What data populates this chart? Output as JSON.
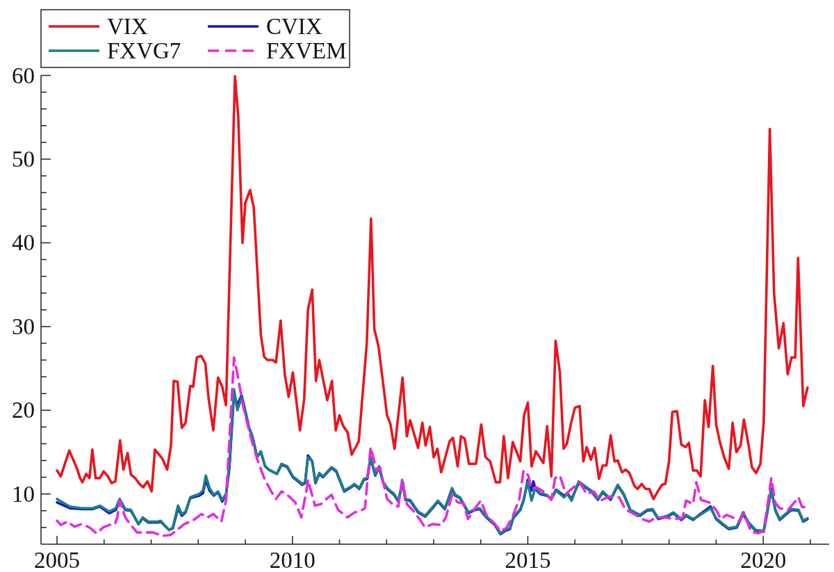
{
  "chart_data": {
    "type": "line",
    "legend": "top left",
    "line_style": "solid",
    "xlim": [
      2004.66,
      2021.4
    ],
    "xticks": [
      2005,
      {
        "value": 2006,
        "label": null
      },
      {
        "value": 2007,
        "label": null
      },
      {
        "value": 2008,
        "label": null
      },
      {
        "value": 2009,
        "label": null
      },
      2010,
      {
        "value": 2011,
        "label": null
      },
      {
        "value": 2012,
        "label": null
      },
      {
        "value": 2013,
        "label": null
      },
      {
        "value": 2014,
        "label": null
      },
      2015,
      {
        "value": 2016,
        "label": null
      },
      {
        "value": 2017,
        "label": null
      },
      {
        "value": 2018,
        "label": null
      },
      {
        "value": 2019,
        "label": null
      },
      2020,
      {
        "value": 2021,
        "label": null
      }
    ],
    "ylim": [
      4,
      60
    ],
    "yticks": [
      {
        "value": 6,
        "label": null
      },
      {
        "value": 8,
        "label": null
      },
      10,
      {
        "value": 12,
        "label": null
      },
      {
        "value": 14,
        "label": null
      },
      {
        "value": 16,
        "label": null
      },
      {
        "value": 18,
        "label": null
      },
      20,
      {
        "value": 22,
        "label": null
      },
      {
        "value": 24,
        "label": null
      },
      {
        "value": 26,
        "label": null
      },
      {
        "value": 28,
        "label": null
      },
      30,
      {
        "value": 32,
        "label": null
      },
      {
        "value": 34,
        "label": null
      },
      {
        "value": 36,
        "label": null
      },
      {
        "value": 38,
        "label": null
      },
      40,
      {
        "value": 42,
        "label": null
      },
      {
        "value": 44,
        "label": null
      },
      {
        "value": 46,
        "label": null
      },
      {
        "value": 48,
        "label": null
      },
      50,
      {
        "value": 52,
        "label": null
      },
      {
        "value": 54,
        "label": null
      },
      {
        "value": 56,
        "label": null
      },
      {
        "value": 58,
        "label": null
      },
      60
    ],
    "series": [
      {
        "name": "VIX",
        "color": "#e8161e",
        "x": [
          2005.0,
          2005.08,
          2005.26,
          2005.42,
          2005.49,
          2005.54,
          2005.62,
          2005.69,
          2005.75,
          2005.82,
          2005.91,
          2005.99,
          2006.07,
          2006.16,
          2006.24,
          2006.34,
          2006.41,
          2006.5,
          2006.57,
          2006.66,
          2006.75,
          2006.83,
          2006.92,
          2007.01,
          2007.08,
          2007.24,
          2007.34,
          2007.42,
          2007.48,
          2007.56,
          2007.65,
          2007.73,
          2007.83,
          2007.89,
          2007.97,
          2008.06,
          2008.15,
          2008.22,
          2008.32,
          2008.42,
          2008.51,
          2008.59,
          2008.78,
          2008.85,
          2008.94,
          2009.0,
          2009.1,
          2009.18,
          2009.33,
          2009.4,
          2009.47,
          2009.58,
          2009.65,
          2009.75,
          2009.84,
          2009.92,
          2010.01,
          2010.16,
          2010.25,
          2010.33,
          2010.42,
          2010.5,
          2010.57,
          2010.74,
          2010.84,
          2010.92,
          2011.0,
          2011.08,
          2011.17,
          2011.26,
          2011.41,
          2011.58,
          2011.67,
          2011.74,
          2011.83,
          2012.01,
          2012.08,
          2012.17,
          2012.34,
          2012.43,
          2012.5,
          2012.67,
          2012.76,
          2012.83,
          2012.92,
          2013.0,
          2013.08,
          2013.16,
          2013.34,
          2013.41,
          2013.51,
          2013.58,
          2013.66,
          2013.75,
          2013.9,
          2014.01,
          2014.1,
          2014.2,
          2014.32,
          2014.41,
          2014.49,
          2014.58,
          2014.68,
          2014.84,
          2014.92,
          2015.0,
          2015.08,
          2015.17,
          2015.33,
          2015.41,
          2015.5,
          2015.59,
          2015.68,
          2015.76,
          2015.83,
          2015.92,
          2016.0,
          2016.1,
          2016.18,
          2016.25,
          2016.34,
          2016.42,
          2016.51,
          2016.59,
          2016.67,
          2016.76,
          2016.84,
          2016.91,
          2017.0,
          2017.08,
          2017.16,
          2017.26,
          2017.33,
          2017.42,
          2017.5,
          2017.58,
          2017.67,
          2017.76,
          2017.85,
          2017.92,
          2018.0,
          2018.07,
          2018.17,
          2018.26,
          2018.35,
          2018.42,
          2018.51,
          2018.59,
          2018.67,
          2018.76,
          2018.84,
          2018.93,
          2019.0,
          2019.08,
          2019.17,
          2019.27,
          2019.35,
          2019.43,
          2019.52,
          2019.59,
          2019.69,
          2019.76,
          2019.85,
          2019.94,
          2020.01,
          2020.14,
          2020.23,
          2020.33,
          2020.43,
          2020.52,
          2020.6,
          2020.68,
          2020.74,
          2020.85,
          2020.94
        ],
        "values": [
          12.8,
          12.1,
          15.2,
          13.1,
          11.9,
          11.4,
          12.4,
          11.9,
          15.3,
          11.9,
          11.9,
          12.7,
          12.2,
          11.3,
          11.5,
          16.4,
          12.9,
          14.9,
          12.3,
          11.9,
          11.2,
          10.8,
          11.5,
          10.3,
          15.3,
          14.2,
          12.9,
          15.8,
          23.5,
          23.4,
          17.9,
          18.5,
          22.9,
          22.8,
          26.3,
          26.5,
          25.6,
          21.4,
          17.6,
          23.9,
          22.8,
          20.6,
          59.9,
          55.0,
          40.0,
          44.8,
          46.3,
          44.2,
          29.0,
          26.4,
          26.0,
          26.0,
          25.7,
          30.7,
          24.2,
          21.6,
          24.5,
          17.6,
          21.3,
          32.0,
          34.4,
          23.5,
          26.0,
          21.2,
          23.5,
          17.6,
          19.4,
          18.1,
          17.4,
          14.7,
          16.3,
          28.0,
          42.9,
          29.7,
          27.6,
          19.4,
          18.4,
          15.4,
          23.9,
          16.9,
          18.8,
          15.5,
          18.5,
          15.8,
          18.0,
          14.4,
          15.4,
          12.6,
          16.3,
          16.7,
          13.3,
          16.9,
          16.6,
          13.6,
          13.6,
          18.3,
          14.4,
          13.9,
          11.4,
          11.4,
          16.9,
          11.9,
          16.2,
          13.9,
          19.4,
          20.9,
          13.3,
          15.1,
          13.7,
          18.1,
          12.1,
          28.3,
          24.6,
          15.4,
          16.0,
          18.5,
          20.3,
          20.5,
          13.9,
          15.6,
          14.1,
          15.5,
          11.8,
          13.4,
          13.4,
          17.0,
          13.9,
          14.0,
          12.6,
          12.9,
          12.5,
          11.0,
          10.6,
          11.2,
          10.6,
          10.6,
          9.4,
          10.3,
          11.1,
          11.2,
          13.9,
          19.8,
          19.9,
          15.9,
          15.6,
          16.1,
          12.8,
          12.8,
          12.1,
          21.2,
          18.0,
          25.3,
          18.3,
          16.2,
          14.4,
          13.0,
          18.5,
          15.0,
          15.8,
          18.9,
          15.8,
          13.2,
          12.5,
          13.6,
          18.5,
          53.6,
          34.0,
          27.4,
          30.4,
          24.3,
          26.3,
          26.3,
          38.2,
          20.5,
          22.7
        ]
      },
      {
        "name": "CVIX",
        "color": "#1212cc",
        "x": [
          2005.0,
          2005.27,
          2005.52,
          2005.76,
          2005.91,
          2006.11,
          2006.25,
          2006.33,
          2006.45,
          2006.57,
          2006.73,
          2006.82,
          2006.94,
          2007.14,
          2007.2,
          2007.38,
          2007.46,
          2007.57,
          2007.65,
          2007.73,
          2007.83,
          2008.02,
          2008.1,
          2008.16,
          2008.24,
          2008.33,
          2008.42,
          2008.51,
          2008.59,
          2008.66,
          2008.76,
          2008.83,
          2008.92,
          2009.0,
          2009.08,
          2009.15,
          2009.25,
          2009.33,
          2009.42,
          2009.5,
          2009.67,
          2009.77,
          2009.89,
          2010.01,
          2010.21,
          2010.27,
          2010.33,
          2010.42,
          2010.49,
          2010.57,
          2010.65,
          2010.83,
          2010.93,
          2011.1,
          2011.22,
          2011.32,
          2011.42,
          2011.52,
          2011.59,
          2011.66,
          2011.76,
          2011.84,
          2011.93,
          2012.03,
          2012.16,
          2012.25,
          2012.34,
          2012.4,
          2012.5,
          2012.67,
          2012.82,
          2012.99,
          2013.09,
          2013.24,
          2013.39,
          2013.46,
          2013.56,
          2013.74,
          2013.88,
          2013.98,
          2014.1,
          2014.3,
          2014.42,
          2014.52,
          2014.62,
          2014.69,
          2014.84,
          2014.91,
          2015.0,
          2015.08,
          2015.12,
          2015.16,
          2015.26,
          2015.4,
          2015.5,
          2015.6,
          2015.77,
          2015.84,
          2015.93,
          2016.08,
          2016.25,
          2016.35,
          2016.49,
          2016.59,
          2016.76,
          2016.91,
          2017.04,
          2017.18,
          2017.38,
          2017.53,
          2017.65,
          2017.77,
          2017.97,
          2018.09,
          2018.26,
          2018.36,
          2018.51,
          2018.66,
          2018.88,
          2019.0,
          2019.15,
          2019.27,
          2019.44,
          2019.57,
          2019.69,
          2019.84,
          2020.01,
          2020.08,
          2020.17,
          2020.26,
          2020.35,
          2020.45,
          2020.6,
          2020.75,
          2020.85,
          2020.94
        ],
        "values": [
          9.0,
          8.3,
          8.2,
          8.2,
          8.5,
          7.7,
          8.1,
          9.1,
          8.1,
          8.0,
          6.4,
          7.1,
          6.6,
          6.6,
          6.7,
          5.7,
          5.9,
          8.3,
          7.4,
          7.8,
          9.5,
          9.8,
          10.1,
          11.7,
          10.4,
          9.8,
          10.2,
          9.1,
          9.9,
          13.0,
          22.0,
          20.6,
          21.8,
          19.9,
          17.9,
          16.9,
          14.4,
          15.0,
          13.3,
          12.9,
          12.4,
          13.5,
          13.2,
          12.0,
          11.1,
          11.3,
          14.6,
          13.9,
          11.3,
          12.4,
          12.0,
          13.1,
          12.7,
          10.3,
          10.7,
          11.1,
          10.6,
          11.7,
          11.8,
          14.3,
          12.2,
          13.2,
          11.3,
          10.5,
          9.9,
          9.1,
          11.4,
          9.3,
          9.2,
          7.8,
          7.3,
          8.4,
          9.1,
          8.2,
          10.6,
          9.8,
          9.5,
          7.7,
          8.1,
          8.2,
          7.3,
          6.3,
          5.2,
          5.6,
          5.8,
          7.1,
          8.1,
          9.2,
          11.7,
          10.4,
          11.5,
          10.6,
          10.0,
          9.8,
          9.5,
          10.5,
          9.8,
          10.1,
          9.4,
          11.3,
          10.7,
          10.3,
          9.3,
          10.2,
          9.3,
          11.0,
          9.9,
          8.0,
          7.4,
          8.0,
          8.1,
          7.0,
          7.3,
          7.7,
          6.9,
          7.4,
          6.9,
          7.6,
          8.5,
          7.0,
          6.3,
          5.8,
          6.0,
          7.6,
          6.5,
          5.6,
          5.5,
          7.6,
          10.6,
          8.0,
          6.9,
          7.4,
          8.1,
          8.0,
          6.7,
          7.0
        ]
      },
      {
        "name": "FXVG7",
        "color": "#1b7e86",
        "x": [
          2005.0,
          2005.27,
          2005.52,
          2005.76,
          2005.91,
          2006.11,
          2006.25,
          2006.33,
          2006.45,
          2006.57,
          2006.73,
          2006.82,
          2006.94,
          2007.14,
          2007.2,
          2007.38,
          2007.46,
          2007.57,
          2007.65,
          2007.73,
          2007.83,
          2008.02,
          2008.1,
          2008.16,
          2008.24,
          2008.33,
          2008.42,
          2008.51,
          2008.59,
          2008.66,
          2008.76,
          2008.83,
          2008.92,
          2009.0,
          2009.08,
          2009.15,
          2009.25,
          2009.33,
          2009.42,
          2009.5,
          2009.67,
          2009.77,
          2009.89,
          2010.01,
          2010.21,
          2010.27,
          2010.33,
          2010.42,
          2010.49,
          2010.57,
          2010.65,
          2010.83,
          2010.93,
          2011.1,
          2011.22,
          2011.32,
          2011.42,
          2011.52,
          2011.59,
          2011.66,
          2011.76,
          2011.84,
          2011.93,
          2012.03,
          2012.16,
          2012.25,
          2012.34,
          2012.4,
          2012.5,
          2012.67,
          2012.82,
          2012.99,
          2013.09,
          2013.24,
          2013.39,
          2013.46,
          2013.56,
          2013.74,
          2013.88,
          2013.98,
          2014.1,
          2014.3,
          2014.42,
          2014.52,
          2014.62,
          2014.69,
          2014.84,
          2014.91,
          2015.0,
          2015.08,
          2015.16,
          2015.26,
          2015.4,
          2015.5,
          2015.6,
          2015.77,
          2015.84,
          2015.93,
          2016.08,
          2016.25,
          2016.35,
          2016.49,
          2016.59,
          2016.76,
          2016.91,
          2017.04,
          2017.18,
          2017.38,
          2017.53,
          2017.65,
          2017.77,
          2017.97,
          2018.09,
          2018.26,
          2018.36,
          2018.51,
          2018.66,
          2018.88,
          2019.0,
          2019.15,
          2019.27,
          2019.44,
          2019.57,
          2019.69,
          2019.84,
          2020.01,
          2020.08,
          2020.17,
          2020.26,
          2020.35,
          2020.45,
          2020.6,
          2020.75,
          2020.85,
          2020.94
        ],
        "values": [
          9.4,
          8.5,
          8.3,
          8.3,
          8.6,
          7.9,
          8.3,
          9.4,
          8.2,
          8.1,
          6.4,
          7.2,
          6.7,
          6.7,
          6.8,
          5.7,
          6.0,
          8.6,
          7.6,
          7.9,
          9.6,
          10.0,
          10.4,
          12.2,
          10.7,
          9.9,
          10.3,
          9.3,
          10.0,
          13.3,
          22.5,
          20.0,
          21.5,
          19.7,
          17.8,
          16.9,
          14.4,
          15.1,
          13.3,
          12.9,
          12.4,
          13.6,
          13.3,
          12.1,
          11.2,
          11.4,
          14.4,
          13.9,
          11.4,
          12.5,
          12.1,
          13.2,
          12.8,
          10.4,
          10.8,
          11.2,
          10.7,
          11.8,
          11.9,
          14.4,
          12.3,
          13.3,
          11.4,
          10.6,
          10.0,
          9.2,
          11.5,
          9.4,
          9.3,
          7.9,
          7.4,
          8.5,
          9.2,
          8.3,
          10.7,
          9.9,
          9.6,
          7.8,
          8.2,
          8.3,
          7.4,
          6.4,
          5.3,
          5.7,
          5.9,
          7.2,
          8.2,
          9.3,
          11.4,
          9.2,
          10.8,
          10.1,
          9.9,
          9.4,
          10.4,
          9.6,
          10.0,
          9.2,
          11.5,
          10.8,
          10.4,
          9.4,
          10.3,
          9.4,
          11.1,
          10.0,
          8.1,
          7.5,
          8.1,
          8.2,
          7.1,
          7.4,
          7.8,
          7.0,
          7.5,
          7.0,
          7.5,
          8.3,
          7.1,
          6.4,
          5.9,
          6.1,
          7.8,
          6.6,
          5.7,
          5.6,
          7.8,
          10.4,
          8.1,
          7.0,
          7.5,
          8.2,
          8.1,
          6.8,
          7.1
        ]
      },
      {
        "name": "FXVEM",
        "color": "#e22ce2",
        "line_style": "dashed",
        "x": [
          2005.0,
          2005.08,
          2005.22,
          2005.37,
          2005.52,
          2005.69,
          2005.84,
          2005.98,
          2006.11,
          2006.23,
          2006.28,
          2006.33,
          2006.45,
          2006.57,
          2006.7,
          2006.84,
          2007.04,
          2007.24,
          2007.41,
          2007.53,
          2007.7,
          2007.88,
          2008.07,
          2008.2,
          2008.32,
          2008.49,
          2008.59,
          2008.66,
          2008.76,
          2008.83,
          2008.96,
          2009.11,
          2009.25,
          2009.4,
          2009.55,
          2009.65,
          2009.77,
          2009.89,
          2010.06,
          2010.19,
          2010.31,
          2010.33,
          2010.48,
          2010.61,
          2010.68,
          2010.83,
          2010.97,
          2011.17,
          2011.32,
          2011.42,
          2011.54,
          2011.66,
          2011.79,
          2011.86,
          2012.01,
          2012.16,
          2012.25,
          2012.33,
          2012.43,
          2012.55,
          2012.7,
          2012.82,
          2012.97,
          2013.16,
          2013.26,
          2013.39,
          2013.51,
          2013.63,
          2013.73,
          2013.88,
          2014.0,
          2014.12,
          2014.3,
          2014.42,
          2014.54,
          2014.67,
          2014.82,
          2014.91,
          2015.01,
          2015.08,
          2015.18,
          2015.33,
          2015.5,
          2015.58,
          2015.68,
          2015.81,
          2015.95,
          2016.1,
          2016.25,
          2016.4,
          2016.54,
          2016.74,
          2016.94,
          2017.08,
          2017.23,
          2017.43,
          2017.58,
          2017.72,
          2017.92,
          2018.12,
          2018.29,
          2018.36,
          2018.51,
          2018.58,
          2018.68,
          2018.85,
          2019.0,
          2019.1,
          2019.22,
          2019.35,
          2019.49,
          2019.59,
          2019.74,
          2019.89,
          2020.01,
          2020.11,
          2020.17,
          2020.26,
          2020.35,
          2020.53,
          2020.75,
          2020.82,
          2020.94
        ],
        "values": [
          6.8,
          6.3,
          6.7,
          6.1,
          6.4,
          6.0,
          5.3,
          6.0,
          6.3,
          6.4,
          7.2,
          9.2,
          7.2,
          6.3,
          5.4,
          5.4,
          5.4,
          5.0,
          5.1,
          5.6,
          6.4,
          6.8,
          7.6,
          7.2,
          7.6,
          6.7,
          9.2,
          16.4,
          26.3,
          24.4,
          20.3,
          16.9,
          14.2,
          11.9,
          10.3,
          9.4,
          10.3,
          9.9,
          9.0,
          7.2,
          10.8,
          11.7,
          8.6,
          8.8,
          9.2,
          9.9,
          8.1,
          7.2,
          7.8,
          7.9,
          8.3,
          15.6,
          12.8,
          13.2,
          9.4,
          8.6,
          8.5,
          11.7,
          8.8,
          8.1,
          7.0,
          6.0,
          6.4,
          6.3,
          7.2,
          9.9,
          9.0,
          8.9,
          7.0,
          8.3,
          9.2,
          7.5,
          6.4,
          5.6,
          5.9,
          7.2,
          9.4,
          12.8,
          12.2,
          10.6,
          10.8,
          10.3,
          9.3,
          11.9,
          12.2,
          10.0,
          10.7,
          11.4,
          10.0,
          10.3,
          9.2,
          9.7,
          9.6,
          8.1,
          7.7,
          7.0,
          6.7,
          7.2,
          7.2,
          7.0,
          7.2,
          9.2,
          8.8,
          11.4,
          9.3,
          9.0,
          8.1,
          7.0,
          7.5,
          7.2,
          6.7,
          7.8,
          5.5,
          5.3,
          5.6,
          9.4,
          11.9,
          8.9,
          8.3,
          8.1,
          9.6,
          8.5,
          8.3
        ]
      }
    ]
  }
}
